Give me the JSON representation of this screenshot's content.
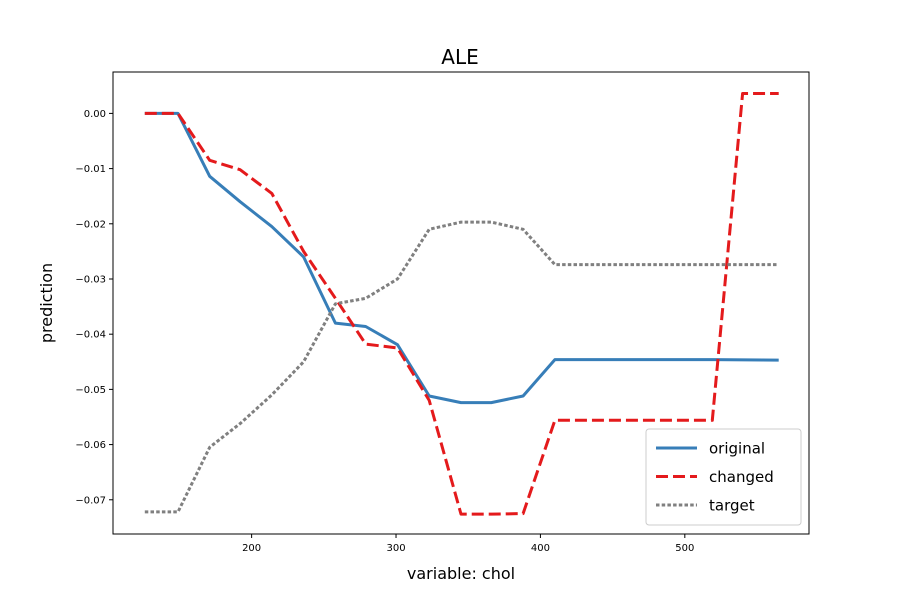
{
  "chart_data": {
    "type": "line",
    "title": "ALE",
    "xlabel": "variable: chol",
    "ylabel": "prediction",
    "xlim": [
      104,
      586
    ],
    "ylim": [
      -0.0762,
      0.0075
    ],
    "xticks": [
      200,
      300,
      400,
      500
    ],
    "xtick_labels": [
      "200",
      "300",
      "400",
      "500"
    ],
    "yticks": [
      0.0,
      -0.01,
      -0.02,
      -0.03,
      -0.04,
      -0.05,
      -0.06,
      -0.07
    ],
    "ytick_labels": [
      "0.00",
      "−0.01",
      "−0.02",
      "−0.03",
      "−0.04",
      "−0.05",
      "−0.06",
      "−0.07"
    ],
    "grid": false,
    "legend_position": "bottom-right",
    "series": [
      {
        "name": "original",
        "color": "#377eb8",
        "style": "solid",
        "points": [
          [
            126,
            0.0
          ],
          [
            149,
            0.0
          ],
          [
            171,
            -0.0114
          ],
          [
            192,
            -0.016
          ],
          [
            214,
            -0.0205
          ],
          [
            236,
            -0.026
          ],
          [
            258,
            -0.038
          ],
          [
            279,
            -0.0386
          ],
          [
            301,
            -0.0419
          ],
          [
            323,
            -0.0512
          ],
          [
            345,
            -0.0524
          ],
          [
            366,
            -0.0524
          ],
          [
            388,
            -0.0512
          ],
          [
            410,
            -0.0446
          ],
          [
            520,
            -0.0446
          ],
          [
            565,
            -0.0447
          ]
        ]
      },
      {
        "name": "changed",
        "color": "#e41a1c",
        "style": "dashed",
        "points": [
          [
            126,
            0.0
          ],
          [
            149,
            0.0
          ],
          [
            171,
            -0.0085
          ],
          [
            192,
            -0.0102
          ],
          [
            214,
            -0.0145
          ],
          [
            236,
            -0.025
          ],
          [
            258,
            -0.0335
          ],
          [
            279,
            -0.0418
          ],
          [
            301,
            -0.0425
          ],
          [
            323,
            -0.052
          ],
          [
            345,
            -0.0726
          ],
          [
            366,
            -0.0726
          ],
          [
            388,
            -0.0725
          ],
          [
            410,
            -0.0556
          ],
          [
            519,
            -0.0556
          ],
          [
            540,
            0.0036
          ],
          [
            565,
            0.0036
          ]
        ]
      },
      {
        "name": "target",
        "color": "#808080",
        "style": "dotted",
        "points": [
          [
            126,
            -0.0722
          ],
          [
            149,
            -0.0722
          ],
          [
            171,
            -0.0605
          ],
          [
            192,
            -0.0562
          ],
          [
            214,
            -0.051
          ],
          [
            236,
            -0.045
          ],
          [
            258,
            -0.0345
          ],
          [
            279,
            -0.0335
          ],
          [
            301,
            -0.03
          ],
          [
            323,
            -0.021
          ],
          [
            345,
            -0.0197
          ],
          [
            366,
            -0.0197
          ],
          [
            388,
            -0.021
          ],
          [
            410,
            -0.0274
          ],
          [
            565,
            -0.0274
          ]
        ]
      }
    ]
  }
}
